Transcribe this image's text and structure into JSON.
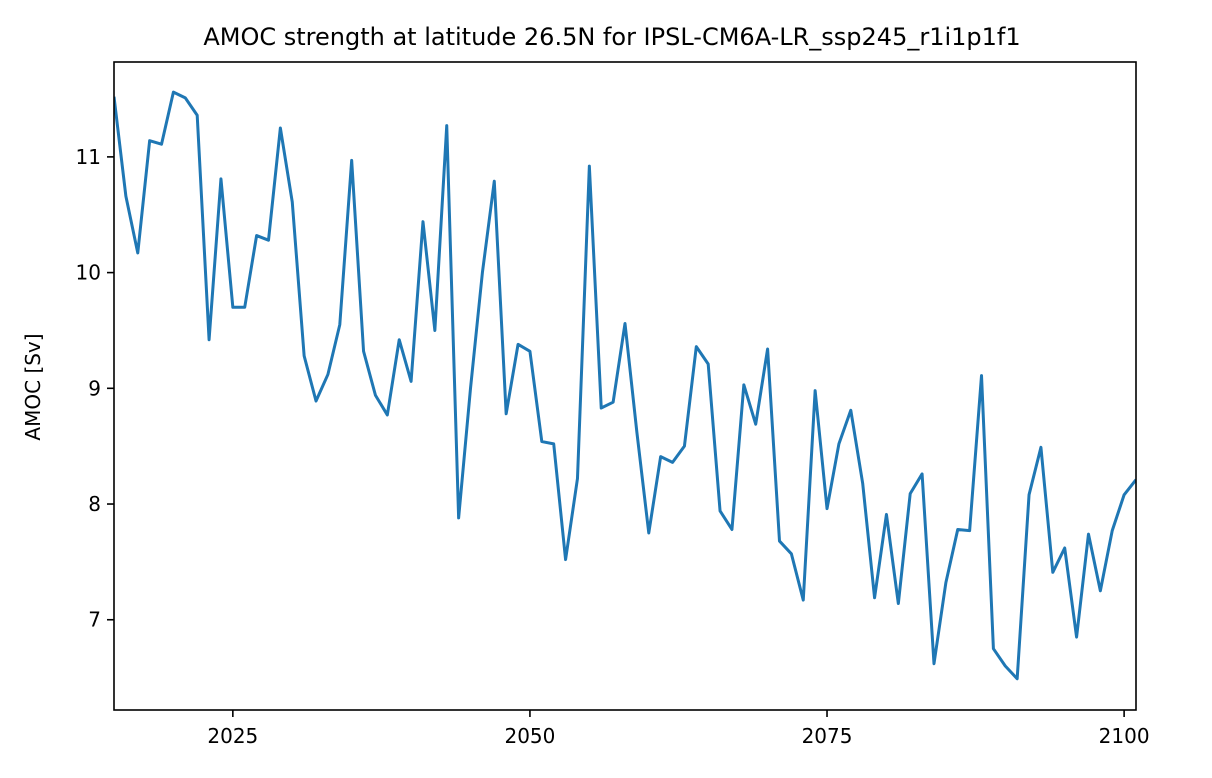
{
  "chart_data": {
    "type": "line",
    "title": "AMOC strength at latitude 26.5N for IPSL-CM6A-LR_ssp245_r1i1p1f1",
    "xlabel": "",
    "ylabel": "AMOC [Sv]",
    "xlim": [
      2015,
      2101
    ],
    "ylim": [
      6.22,
      11.82
    ],
    "xticks": [
      2025,
      2050,
      2075,
      2100
    ],
    "yticks": [
      7,
      8,
      9,
      10,
      11
    ],
    "grid": false,
    "legend": "none",
    "colors": {
      "line": "#1f77b4",
      "axes": "#000000",
      "background": "#ffffff"
    },
    "series": [
      {
        "x": [
          2015,
          2016,
          2017,
          2018,
          2019,
          2020,
          2021,
          2022,
          2023,
          2024,
          2025,
          2026,
          2027,
          2028,
          2029,
          2030,
          2031,
          2032,
          2033,
          2034,
          2035,
          2036,
          2037,
          2038,
          2039,
          2040,
          2041,
          2042,
          2043,
          2044,
          2045,
          2046,
          2047,
          2048,
          2049,
          2050,
          2051,
          2052,
          2053,
          2054,
          2055,
          2056,
          2057,
          2058,
          2059,
          2060,
          2061,
          2062,
          2063,
          2064,
          2065,
          2066,
          2067,
          2068,
          2069,
          2070,
          2071,
          2072,
          2073,
          2074,
          2075,
          2076,
          2077,
          2078,
          2079,
          2080,
          2081,
          2082,
          2083,
          2084,
          2085,
          2086,
          2087,
          2088,
          2089,
          2090,
          2091,
          2092,
          2093,
          2094,
          2095,
          2096,
          2097,
          2098,
          2099,
          2100,
          2101
        ],
        "values": [
          11.52,
          10.66,
          10.17,
          11.14,
          11.11,
          11.56,
          11.51,
          11.36,
          9.42,
          10.81,
          9.7,
          9.7,
          10.32,
          10.28,
          11.25,
          10.61,
          9.28,
          8.89,
          9.12,
          9.55,
          10.97,
          9.32,
          8.94,
          8.77,
          9.42,
          9.06,
          10.44,
          9.5,
          11.27,
          7.88,
          9.0,
          10.0,
          10.79,
          8.78,
          9.38,
          9.32,
          8.54,
          8.52,
          7.52,
          8.22,
          10.92,
          8.83,
          8.88,
          9.56,
          8.62,
          7.75,
          8.41,
          8.36,
          8.5,
          9.36,
          9.21,
          7.94,
          7.78,
          9.03,
          8.69,
          9.34,
          7.68,
          7.57,
          7.17,
          8.98,
          7.96,
          8.52,
          8.81,
          8.18,
          7.19,
          7.91,
          7.14,
          8.09,
          8.26,
          6.62,
          7.32,
          7.78,
          7.77,
          9.11,
          6.75,
          6.6,
          6.49,
          8.08,
          8.49,
          7.41,
          7.62,
          6.85,
          7.74,
          7.25,
          7.77,
          8.08,
          8.21
        ]
      }
    ]
  }
}
